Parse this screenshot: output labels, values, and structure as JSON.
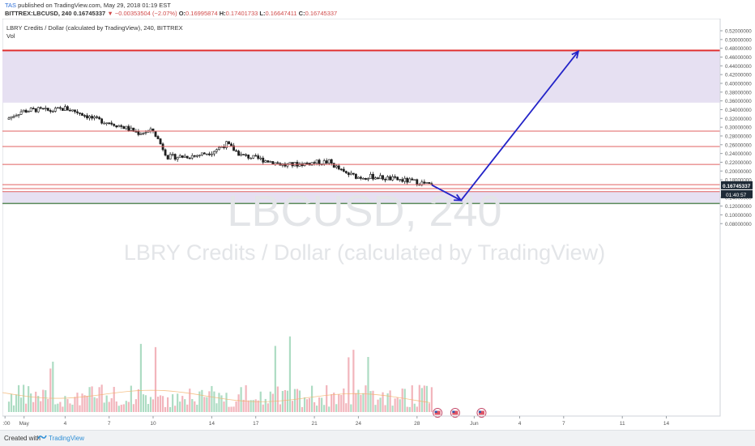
{
  "header": {
    "author": "TAS",
    "published_text": "published on TradingView.com, May 29, 2018 01:19 EST",
    "symbol": "BITTREX:LBCUSD, 240",
    "last_price": "0.16745337",
    "change_arrow": "▼",
    "change": "−0.00353504 (−2.07%)",
    "o_label": "O:",
    "o_value": "0.16995874",
    "h_label": "H:",
    "h_value": "0.17401733",
    "l_label": "L:",
    "l_value": "0.16647411",
    "c_label": "C:",
    "c_value": "0.16745337"
  },
  "legend": {
    "series_title": "LBRY Credits / Dollar (calculated by TradingView), 240, BITTREX",
    "volume_label": "Vol"
  },
  "watermark": {
    "symbol": "LBCUSD, 240",
    "name": "LBRY Credits / Dollar (calculated by TradingView)"
  },
  "price_axis": {
    "ticks": [
      "0.52000000",
      "0.50000000",
      "0.48000000",
      "0.46000000",
      "0.44000000",
      "0.42000000",
      "0.40000000",
      "0.38000000",
      "0.36000000",
      "0.34000000",
      "0.32000000",
      "0.30000000",
      "0.28000000",
      "0.26000000",
      "0.24000000",
      "0.22000000",
      "0.20000000",
      "0.18000000",
      "0.14000000",
      "0.12000000",
      "0.10000000",
      "0.08000000"
    ],
    "last_price_badge": "0.16745337",
    "countdown_badge": "01:40:57"
  },
  "time_axis": {
    "ticks": [
      "2:00",
      "May",
      "4",
      "7",
      "10",
      "14",
      "17",
      "21",
      "24",
      "28",
      "Jun",
      "4",
      "7",
      "11",
      "14"
    ]
  },
  "footer": {
    "created_with": "Created with",
    "brand": "TradingView"
  },
  "colors": {
    "zone_fill": "#e6e0f2",
    "resistance_line": "#e03030",
    "thin_lines": "#e06060",
    "arrow": "#2424c8",
    "candle": "#1f1f1f",
    "vol_up": "#9fd6b8",
    "vol_down": "#f0a8b0",
    "axis_badge": "#1e2a36"
  },
  "chart_data": {
    "type": "candlestick",
    "symbol": "LBCUSD",
    "interval": "240",
    "exchange": "BITTREX",
    "y_scale": "linear",
    "ylim": [
      0.06,
      0.535
    ],
    "price_levels": {
      "resistance_upper": 0.475,
      "zone_top": 0.475,
      "zone_bottom": 0.356,
      "level_1": 0.291,
      "level_2": 0.256,
      "level_3": 0.215,
      "level_4": 0.169,
      "level_5": 0.16,
      "level_6": 0.153,
      "support_lower": 0.126,
      "support_zone_top": 0.153,
      "support_zone_bottom": 0.126
    },
    "projection": {
      "from": {
        "date": "May 29",
        "price": 0.168
      },
      "to_low": {
        "date": "May 31",
        "price": 0.133
      },
      "to_high": {
        "date": "Jun 8",
        "price": 0.473
      }
    },
    "close_path": [
      {
        "date": "Apr 30",
        "close": 0.318
      },
      {
        "date": "May 1",
        "close": 0.336
      },
      {
        "date": "May 2",
        "close": 0.34
      },
      {
        "date": "May 3",
        "close": 0.337
      },
      {
        "date": "May 4",
        "close": 0.343
      },
      {
        "date": "May 5",
        "close": 0.333
      },
      {
        "date": "May 6",
        "close": 0.318
      },
      {
        "date": "May 7",
        "close": 0.311
      },
      {
        "date": "May 8",
        "close": 0.3
      },
      {
        "date": "May 9",
        "close": 0.287
      },
      {
        "date": "May 10",
        "close": 0.292
      },
      {
        "date": "May 11",
        "close": 0.232
      },
      {
        "date": "May 12",
        "close": 0.233
      },
      {
        "date": "May 13",
        "close": 0.236
      },
      {
        "date": "May 14",
        "close": 0.244
      },
      {
        "date": "May 15",
        "close": 0.262
      },
      {
        "date": "May 16",
        "close": 0.236
      },
      {
        "date": "May 17",
        "close": 0.229
      },
      {
        "date": "May 18",
        "close": 0.222
      },
      {
        "date": "May 19",
        "close": 0.213
      },
      {
        "date": "May 20",
        "close": 0.216
      },
      {
        "date": "May 21",
        "close": 0.219
      },
      {
        "date": "May 22",
        "close": 0.221
      },
      {
        "date": "May 23",
        "close": 0.196
      },
      {
        "date": "May 24",
        "close": 0.186
      },
      {
        "date": "May 25",
        "close": 0.187
      },
      {
        "date": "May 26",
        "close": 0.183
      },
      {
        "date": "May 27",
        "close": 0.179
      },
      {
        "date": "May 28",
        "close": 0.175
      },
      {
        "date": "May 29",
        "close": 0.167
      }
    ]
  }
}
